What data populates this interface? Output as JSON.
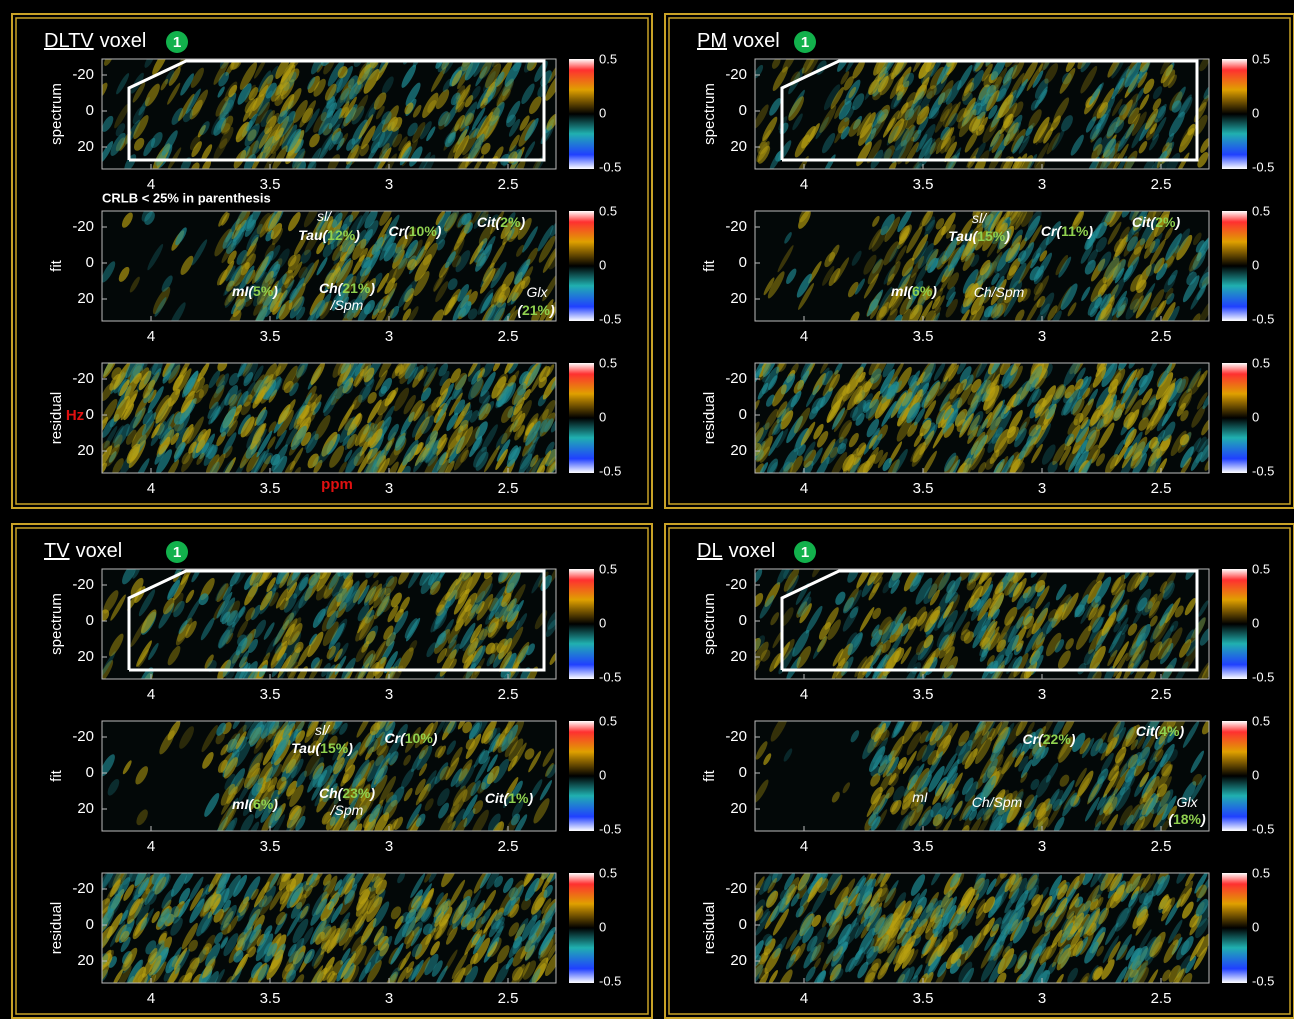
{
  "panels": [
    {
      "method": "DLTV",
      "suffix": "voxel",
      "badge": "1",
      "subplots": [
        {
          "label": "spectrum",
          "yticks": [
            -20,
            0,
            20
          ],
          "xticks": [
            4,
            3.5,
            3,
            2.5
          ],
          "colorbar": [
            0.5,
            0,
            -0.5
          ]
        },
        {
          "label": "fit",
          "yticks": [
            -20,
            0,
            20
          ],
          "xticks": [
            4,
            3.5,
            3,
            2.5
          ],
          "colorbar": [
            0.5,
            0,
            -0.5
          ]
        },
        {
          "label": "residual",
          "yticks": [
            -20,
            0,
            20
          ],
          "xticks": [
            4,
            3.5,
            3,
            2.5
          ],
          "colorbar": [
            0.5,
            0,
            -0.5
          ]
        }
      ],
      "note": "CRLB < 25% in parenthesis",
      "y_unit": "Hz",
      "x_unit": "ppm",
      "annotations": [
        [
          "sl/"
        ],
        [
          "Tau(",
          "12%",
          ")"
        ],
        [
          "Cr(",
          "10%",
          ")"
        ],
        [
          "Cit(",
          "2%",
          ")"
        ],
        [
          "mI(",
          "5%",
          ")"
        ],
        [
          "Ch(",
          "21%",
          ")"
        ],
        [
          "/Spm"
        ],
        [
          "Glx"
        ],
        [
          "(",
          "21%",
          ")"
        ]
      ]
    },
    {
      "method": "PM",
      "suffix": "voxel",
      "badge": "1",
      "subplots": [
        {
          "label": "spectrum",
          "yticks": [
            -20,
            0,
            20
          ],
          "xticks": [
            4,
            3.5,
            3,
            2.5
          ],
          "colorbar": [
            0.5,
            0,
            -0.5
          ]
        },
        {
          "label": "fit",
          "yticks": [
            -20,
            0,
            20
          ],
          "xticks": [
            4,
            3.5,
            3,
            2.5
          ],
          "colorbar": [
            0.5,
            0,
            -0.5
          ]
        },
        {
          "label": "residual",
          "yticks": [
            -20,
            0,
            20
          ],
          "xticks": [
            4,
            3.5,
            3,
            2.5
          ],
          "colorbar": [
            0.5,
            0,
            -0.5
          ]
        }
      ],
      "annotations": [
        [
          "sl/"
        ],
        [
          "Tau(",
          "15%",
          ")"
        ],
        [
          "Cr(",
          "11%",
          ")"
        ],
        [
          "Cit(",
          "2%",
          ")"
        ],
        [
          "mI(",
          "6%",
          ")"
        ],
        [
          "Ch/Spm"
        ]
      ]
    },
    {
      "method": "TV",
      "suffix": "voxel",
      "badge": "1",
      "subplots": [
        {
          "label": "spectrum",
          "yticks": [
            -20,
            0,
            20
          ],
          "xticks": [
            4,
            3.5,
            3,
            2.5
          ],
          "colorbar": [
            0.5,
            0,
            -0.5
          ]
        },
        {
          "label": "fit",
          "yticks": [
            -20,
            0,
            20
          ],
          "xticks": [
            4,
            3.5,
            3,
            2.5
          ],
          "colorbar": [
            0.5,
            0,
            -0.5
          ]
        },
        {
          "label": "residual",
          "yticks": [
            -20,
            0,
            20
          ],
          "xticks": [
            4,
            3.5,
            3,
            2.5
          ],
          "colorbar": [
            0.5,
            0,
            -0.5
          ]
        }
      ],
      "annotations": [
        [
          "sl/"
        ],
        [
          "Tau(",
          "15%",
          ")"
        ],
        [
          "Cr(",
          "10%",
          ")"
        ],
        [
          "mI(",
          "6%",
          ")"
        ],
        [
          "Ch(",
          "23%",
          ")"
        ],
        [
          "/Spm"
        ],
        [
          "Cit(",
          "1%",
          ")"
        ]
      ]
    },
    {
      "method": "DL",
      "suffix": "voxel",
      "badge": "1",
      "subplots": [
        {
          "label": "spectrum",
          "yticks": [
            -20,
            0,
            20
          ],
          "xticks": [
            4,
            3.5,
            3,
            2.5
          ],
          "colorbar": [
            0.5,
            0,
            -0.5
          ]
        },
        {
          "label": "fit",
          "yticks": [
            -20,
            0,
            20
          ],
          "xticks": [
            4,
            3.5,
            3,
            2.5
          ],
          "colorbar": [
            0.5,
            0,
            -0.5
          ]
        },
        {
          "label": "residual",
          "yticks": [
            -20,
            0,
            20
          ],
          "xticks": [
            4,
            3.5,
            3,
            2.5
          ],
          "colorbar": [
            0.5,
            0,
            -0.5
          ]
        }
      ],
      "annotations": [
        [
          "Cr(",
          "22%",
          ")"
        ],
        [
          "Cit(",
          "4%",
          ")"
        ],
        [
          "mI"
        ],
        [
          "Ch/Spm"
        ],
        [
          "Glx"
        ],
        [
          "(",
          "18%",
          ")"
        ]
      ]
    }
  ]
}
